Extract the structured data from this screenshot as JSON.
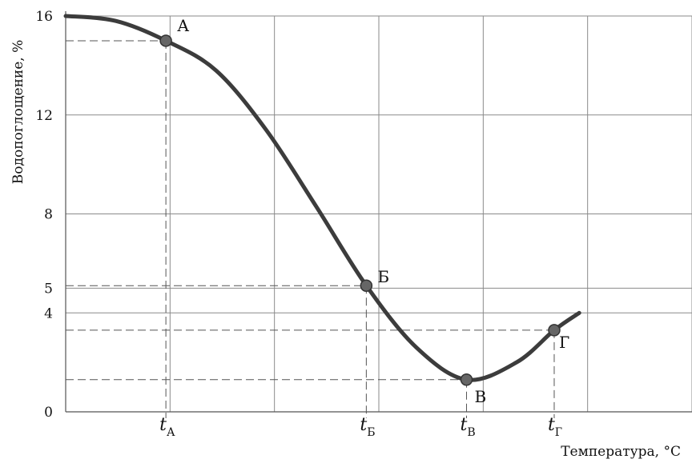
{
  "chart_data": {
    "type": "line",
    "ylabel": "Водопоглощение, %",
    "xlabel": "Температура, °С",
    "ylim": [
      0,
      16
    ],
    "yticks": [
      0,
      4,
      5,
      8,
      12,
      16
    ],
    "xlim": [
      0,
      25
    ],
    "grid": true,
    "x_tick_labels": [
      {
        "var": "t",
        "sub": "А",
        "x": 4
      },
      {
        "var": "t",
        "sub": "Б",
        "x": 12
      },
      {
        "var": "t",
        "sub": "В",
        "x": 16
      },
      {
        "var": "t",
        "sub": "Г",
        "x": 19.5
      }
    ],
    "series": [
      {
        "points": [
          [
            0,
            16
          ],
          [
            2,
            15.8
          ],
          [
            4,
            15
          ],
          [
            6,
            13.8
          ],
          [
            8,
            11.4
          ],
          [
            10,
            8.3
          ],
          [
            12,
            5.1
          ],
          [
            14,
            2.6
          ],
          [
            16,
            1.3
          ],
          [
            18,
            2
          ],
          [
            19.5,
            3.3
          ],
          [
            20.5,
            4
          ]
        ]
      }
    ],
    "annotations": [
      {
        "label": "А",
        "x": 4,
        "y": 15
      },
      {
        "label": "Б",
        "x": 12,
        "y": 5.1
      },
      {
        "label": "В",
        "x": 16,
        "y": 1.3
      },
      {
        "label": "Г",
        "x": 19.5,
        "y": 3.3
      }
    ],
    "color": "#3c3c3c"
  }
}
